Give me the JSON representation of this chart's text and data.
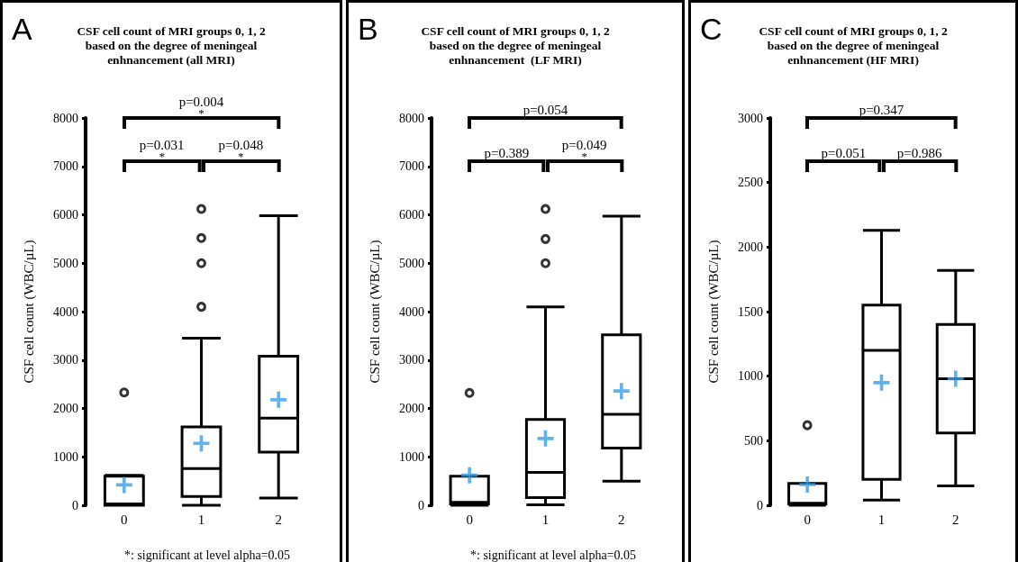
{
  "chart_data": [
    {
      "type": "box",
      "title": "CSF cell count of MRI groups 0, 1, 2\nbased on the degree of meningeal\nenhnancement (all MRI)",
      "ylabel": "CSF cell count (WBC/µL)",
      "categories": [
        "0",
        "1",
        "2"
      ],
      "ylim": [
        0,
        8000
      ],
      "yticks": [
        0,
        1000,
        2000,
        3000,
        4000,
        5000,
        6000,
        7000,
        8000
      ],
      "grid": false,
      "series": [
        {
          "color": "#000000",
          "boxes": [
            {
              "low": 0,
              "q1": 0,
              "median": 30,
              "q3": 600,
              "high": 620,
              "mean": 420,
              "outliers": [
                2330
              ]
            },
            {
              "low": 0,
              "q1": 180,
              "median": 760,
              "q3": 1620,
              "high": 3450,
              "mean": 1280,
              "outliers": [
                4100,
                5000,
                5520,
                6120
              ]
            },
            {
              "low": 150,
              "q1": 1100,
              "median": 1800,
              "q3": 3080,
              "high": 5980,
              "mean": 2180
            }
          ]
        }
      ],
      "annotations": [
        "A",
        "p=0.004\n*",
        "p=0.031\n*",
        "p=0.048\n*",
        "*: significant at level alpha=0.05"
      ]
    },
    {
      "type": "box",
      "title": "CSF cell count of MRI groups 0, 1, 2\nbased on the degree of meningeal\nenhnancement  (LF MRI)",
      "ylabel": "CSF cell count (WBC/µL)",
      "categories": [
        "0",
        "1",
        "2"
      ],
      "ylim": [
        0,
        8000
      ],
      "yticks": [
        0,
        1000,
        2000,
        3000,
        4000,
        5000,
        6000,
        7000,
        8000
      ],
      "grid": false,
      "series": [
        {
          "color": "#000000",
          "boxes": [
            {
              "low": 0,
              "q1": 30,
              "median": 60,
              "q3": 600,
              "high": 600,
              "mean": 620,
              "outliers": [
                2320
              ]
            },
            {
              "low": 10,
              "q1": 160,
              "median": 680,
              "q3": 1770,
              "high": 4100,
              "mean": 1380,
              "outliers": [
                5000,
                5500,
                6120
              ]
            },
            {
              "low": 500,
              "q1": 1180,
              "median": 1880,
              "q3": 3520,
              "high": 5970,
              "mean": 2360
            }
          ]
        }
      ],
      "annotations": [
        "B",
        "p=0.054",
        "p=0.389",
        "p=0.049\n*",
        "*: significant at level alpha=0.05"
      ]
    },
    {
      "type": "box",
      "title": "CSF cell count of MRI groups 0, 1, 2\nbased on the degree of meningeal\nenhnancement (HF MRI)",
      "ylabel": "CSF cell count (WBC/µL)",
      "categories": [
        "0",
        "1",
        "2"
      ],
      "ylim": [
        0,
        3000
      ],
      "yticks": [
        0,
        500,
        1000,
        1500,
        2000,
        2500,
        3000
      ],
      "grid": false,
      "series": [
        {
          "color": "#000000",
          "boxes": [
            {
              "low": 0,
              "q1": 10,
              "median": 15,
              "q3": 170,
              "high": 170,
              "mean": 160,
              "outliers": [
                620
              ]
            },
            {
              "low": 40,
              "q1": 200,
              "median": 1200,
              "q3": 1550,
              "high": 2130,
              "mean": 950
            },
            {
              "low": 150,
              "q1": 560,
              "median": 980,
              "q3": 1400,
              "high": 1820,
              "mean": 980
            }
          ]
        }
      ],
      "annotations": [
        "C",
        "p=0.347",
        "p=0.051",
        "p=0.986"
      ]
    }
  ]
}
